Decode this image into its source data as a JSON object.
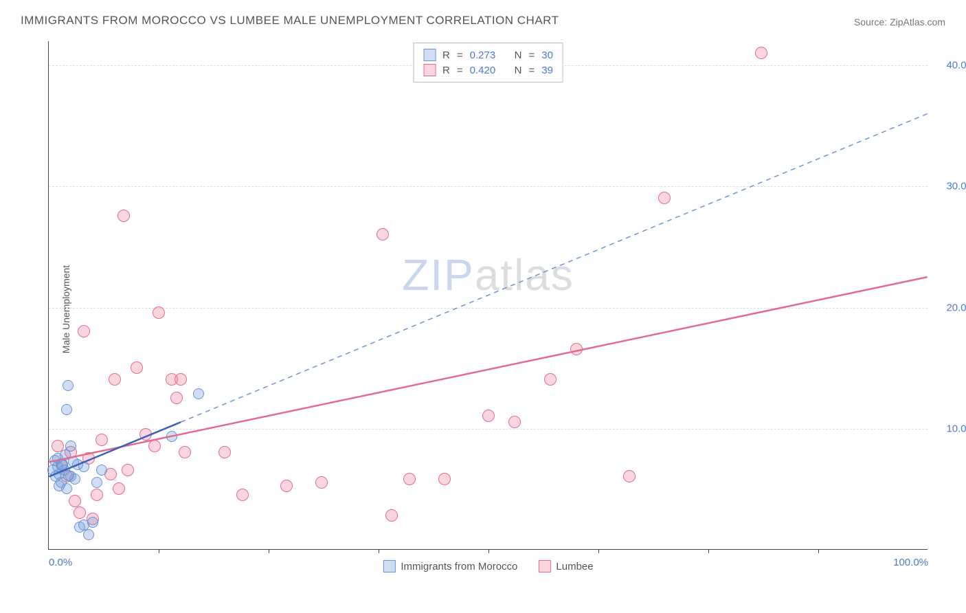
{
  "title": "IMMIGRANTS FROM MOROCCO VS LUMBEE MALE UNEMPLOYMENT CORRELATION CHART",
  "source": "Source: ZipAtlas.com",
  "ylabel": "Male Unemployment",
  "watermark_a": "ZIP",
  "watermark_b": "atlas",
  "watermark_color_a": "#c8d6ee",
  "watermark_color_b": "#dddddd",
  "xlim": [
    0,
    100
  ],
  "ylim": [
    0,
    42
  ],
  "y_ticks": [
    10,
    20,
    30,
    40
  ],
  "y_tick_labels": [
    "10.0%",
    "20.0%",
    "30.0%",
    "40.0%"
  ],
  "x_ticks": [
    0,
    50,
    100
  ],
  "x_tick_labels": [
    "0.0%",
    "",
    "100.0%"
  ],
  "x_minor_ticks": [
    12.5,
    25,
    37.5,
    50,
    62.5,
    75,
    87.5
  ],
  "grid_color": "#dddddd",
  "axis_color": "#444444",
  "tick_label_color": "#4a7bd0",
  "series": {
    "morocco": {
      "label": "Immigrants from Morocco",
      "fill": "rgba(120,160,220,0.35)",
      "stroke": "#6a93d6",
      "marker_radius": 8,
      "R": "0.273",
      "N": "30",
      "trend_solid": {
        "x1": 0,
        "y1": 6.0,
        "x2": 15,
        "y2": 10.5
      },
      "trend_dash": {
        "x1": 15,
        "y1": 10.5,
        "x2": 100,
        "y2": 36.0
      },
      "points": [
        [
          0.5,
          6.5
        ],
        [
          0.8,
          6.0
        ],
        [
          1.0,
          6.8
        ],
        [
          1.0,
          7.5
        ],
        [
          1.2,
          6.2
        ],
        [
          1.4,
          5.5
        ],
        [
          1.5,
          7.0
        ],
        [
          1.8,
          6.5
        ],
        [
          2.0,
          5.0
        ],
        [
          2.0,
          11.5
        ],
        [
          2.2,
          13.5
        ],
        [
          2.5,
          6.0
        ],
        [
          2.8,
          7.2
        ],
        [
          3.0,
          5.8
        ],
        [
          3.5,
          1.8
        ],
        [
          4.0,
          2.0
        ],
        [
          4.5,
          1.2
        ],
        [
          5.0,
          2.2
        ],
        [
          5.5,
          5.5
        ],
        [
          6.0,
          6.5
        ],
        [
          4.0,
          6.8
        ],
        [
          2.5,
          8.5
        ],
        [
          1.2,
          5.2
        ],
        [
          1.6,
          6.9
        ],
        [
          0.7,
          7.3
        ],
        [
          1.9,
          7.8
        ],
        [
          2.3,
          6.1
        ],
        [
          3.3,
          7.0
        ],
        [
          14.0,
          9.3
        ],
        [
          17.0,
          12.8
        ]
      ]
    },
    "lumbee": {
      "label": "Lumbee",
      "fill": "rgba(235,120,150,0.30)",
      "stroke": "#e26b8d",
      "marker_radius": 9,
      "R": "0.420",
      "N": "39",
      "trend_solid": {
        "x1": 0,
        "y1": 7.2,
        "x2": 100,
        "y2": 22.5
      },
      "points": [
        [
          1.5,
          7.0
        ],
        [
          2.0,
          6.0
        ],
        [
          2.5,
          8.0
        ],
        [
          3.0,
          4.0
        ],
        [
          3.5,
          3.0
        ],
        [
          4.0,
          18.0
        ],
        [
          5.0,
          2.5
        ],
        [
          5.5,
          4.5
        ],
        [
          6.0,
          9.0
        ],
        [
          7.0,
          6.2
        ],
        [
          7.5,
          14.0
        ],
        [
          8.0,
          5.0
        ],
        [
          8.5,
          27.5
        ],
        [
          9.0,
          6.5
        ],
        [
          10.0,
          15.0
        ],
        [
          11.0,
          9.5
        ],
        [
          12.0,
          8.5
        ],
        [
          12.5,
          19.5
        ],
        [
          14.0,
          14.0
        ],
        [
          14.5,
          12.5
        ],
        [
          15.0,
          14.0
        ],
        [
          15.5,
          8.0
        ],
        [
          20.0,
          8.0
        ],
        [
          22.0,
          4.5
        ],
        [
          27.0,
          5.2
        ],
        [
          31.0,
          5.5
        ],
        [
          38.0,
          26.0
        ],
        [
          39.0,
          2.8
        ],
        [
          41.0,
          5.8
        ],
        [
          45.0,
          5.8
        ],
        [
          50.0,
          11.0
        ],
        [
          53.0,
          10.5
        ],
        [
          57.0,
          14.0
        ],
        [
          60.0,
          16.5
        ],
        [
          66.0,
          6.0
        ],
        [
          70.0,
          29.0
        ],
        [
          81.0,
          41.0
        ],
        [
          1.0,
          8.5
        ],
        [
          4.5,
          7.5
        ]
      ]
    }
  },
  "legend_top": {
    "r_label": "R",
    "n_label": "N",
    "eq": "="
  },
  "legend_bottom_labels": {
    "morocco": "Immigrants from Morocco",
    "lumbee": "Lumbee"
  }
}
